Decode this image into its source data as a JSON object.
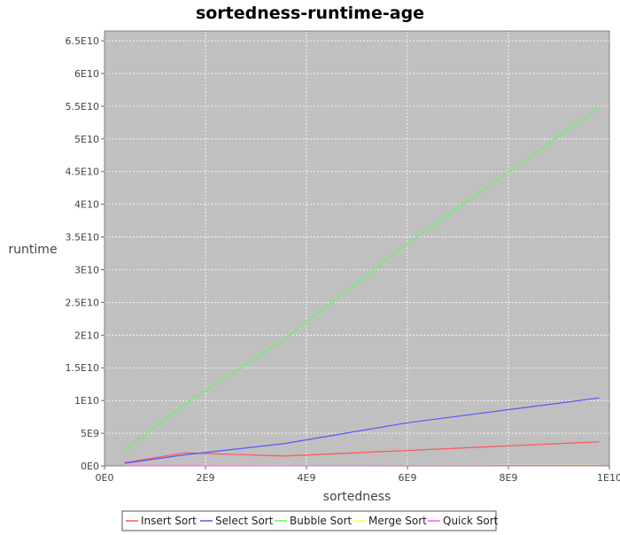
{
  "chart_data": {
    "type": "line",
    "title": "sortedness-runtime-age",
    "xlabel": "sortedness",
    "ylabel": "runtime",
    "xlim": [
      0,
      10000000000
    ],
    "ylim": [
      0,
      66500000000
    ],
    "x_ticks": [
      {
        "value": 0,
        "label": "0E0"
      },
      {
        "value": 2000000000,
        "label": "2E9"
      },
      {
        "value": 4000000000,
        "label": "4E9"
      },
      {
        "value": 6000000000,
        "label": "6E9"
      },
      {
        "value": 8000000000,
        "label": "8E9"
      },
      {
        "value": 10000000000,
        "label": "1E10"
      }
    ],
    "y_ticks": [
      {
        "value": 0,
        "label": "0E0"
      },
      {
        "value": 5000000000,
        "label": "5E9"
      },
      {
        "value": 10000000000,
        "label": "1E10"
      },
      {
        "value": 15000000000,
        "label": "1.5E10"
      },
      {
        "value": 20000000000,
        "label": "2E10"
      },
      {
        "value": 25000000000,
        "label": "2.5E10"
      },
      {
        "value": 30000000000,
        "label": "3E10"
      },
      {
        "value": 35000000000,
        "label": "3.5E10"
      },
      {
        "value": 40000000000,
        "label": "4E10"
      },
      {
        "value": 45000000000,
        "label": "4.5E10"
      },
      {
        "value": 50000000000,
        "label": "5E10"
      },
      {
        "value": 55000000000,
        "label": "5.5E10"
      },
      {
        "value": 60000000000,
        "label": "6E10"
      },
      {
        "value": 65000000000,
        "label": "6.5E10"
      }
    ],
    "grid": true,
    "plot_background": "#c0c0c0",
    "legend_position": "bottom",
    "series": [
      {
        "name": "Insert Sort",
        "color": "#ff5555",
        "points": [
          [
            400000000,
            500000000
          ],
          [
            1600000000,
            2000000000
          ],
          [
            3550000000,
            1500000000
          ],
          [
            9800000000,
            3700000000
          ]
        ]
      },
      {
        "name": "Select Sort",
        "color": "#5555ff",
        "points": [
          [
            400000000,
            400000000
          ],
          [
            1600000000,
            1700000000
          ],
          [
            3550000000,
            3400000000
          ],
          [
            6000000000,
            6600000000
          ],
          [
            9800000000,
            10400000000
          ]
        ]
      },
      {
        "name": "Bubble Sort",
        "color": "#55ff55",
        "points": [
          [
            400000000,
            2400000000
          ],
          [
            1600000000,
            9500000000
          ],
          [
            3550000000,
            19300000000
          ],
          [
            6000000000,
            34000000000
          ],
          [
            9800000000,
            54800000000
          ]
        ]
      },
      {
        "name": "Merge Sort",
        "color": "#ffff55",
        "points": [
          [
            400000000,
            20000000
          ],
          [
            1600000000,
            40000000
          ],
          [
            3550000000,
            60000000
          ],
          [
            9800000000,
            100000000
          ]
        ]
      },
      {
        "name": "Quick Sort",
        "color": "#ff55ff",
        "points": [
          [
            400000000,
            10000000
          ],
          [
            1600000000,
            20000000
          ],
          [
            3550000000,
            30000000
          ],
          [
            9800000000,
            50000000
          ]
        ]
      }
    ]
  }
}
